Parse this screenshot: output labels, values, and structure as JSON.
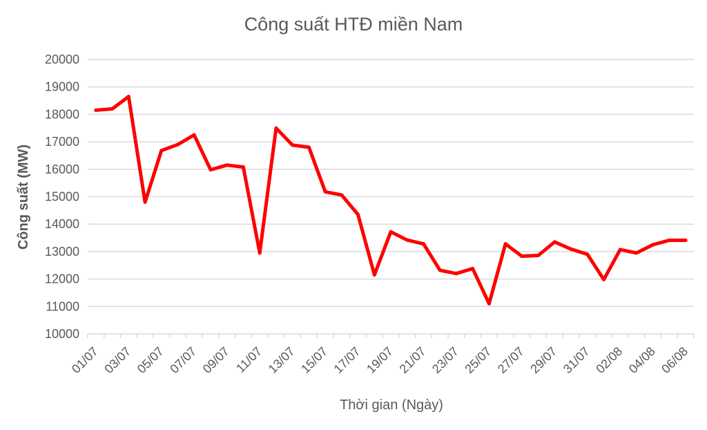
{
  "chart_data": {
    "type": "line",
    "title": "Công suất HTĐ miền Nam",
    "xlabel": "Thời gian (Ngày)",
    "ylabel": "Công suất (MW)",
    "ylim": [
      10000,
      20000
    ],
    "yticks": [
      10000,
      11000,
      12000,
      13000,
      14000,
      15000,
      16000,
      17000,
      18000,
      19000,
      20000
    ],
    "x": [
      "01/07",
      "02/07",
      "03/07",
      "04/07",
      "05/07",
      "06/07",
      "07/07",
      "08/07",
      "09/07",
      "10/07",
      "11/07",
      "12/07",
      "13/07",
      "14/07",
      "15/07",
      "16/07",
      "17/07",
      "18/07",
      "19/07",
      "20/07",
      "21/07",
      "22/07",
      "23/07",
      "24/07",
      "25/07",
      "26/07",
      "27/07",
      "28/07",
      "29/07",
      "30/07",
      "31/07",
      "01/08",
      "02/08",
      "03/08",
      "04/08",
      "05/08",
      "06/08"
    ],
    "xtick_labels": [
      "01/07",
      "03/07",
      "05/07",
      "07/07",
      "09/07",
      "11/07",
      "13/07",
      "15/07",
      "17/07",
      "19/07",
      "21/07",
      "23/07",
      "25/07",
      "27/07",
      "29/07",
      "31/07",
      "02/08",
      "04/08",
      "06/08"
    ],
    "series": [
      {
        "color": "#ff0000",
        "values": [
          18150,
          18200,
          18650,
          14800,
          16680,
          16900,
          17250,
          15980,
          16150,
          16080,
          12950,
          17500,
          16880,
          16800,
          15180,
          15060,
          14350,
          12150,
          13720,
          13420,
          13280,
          12320,
          12200,
          12380,
          11100,
          13280,
          12830,
          12860,
          13350,
          13090,
          12900,
          11980,
          13070,
          12950,
          13250,
          13410,
          13410
        ]
      }
    ],
    "grid": true,
    "legend": "none"
  }
}
